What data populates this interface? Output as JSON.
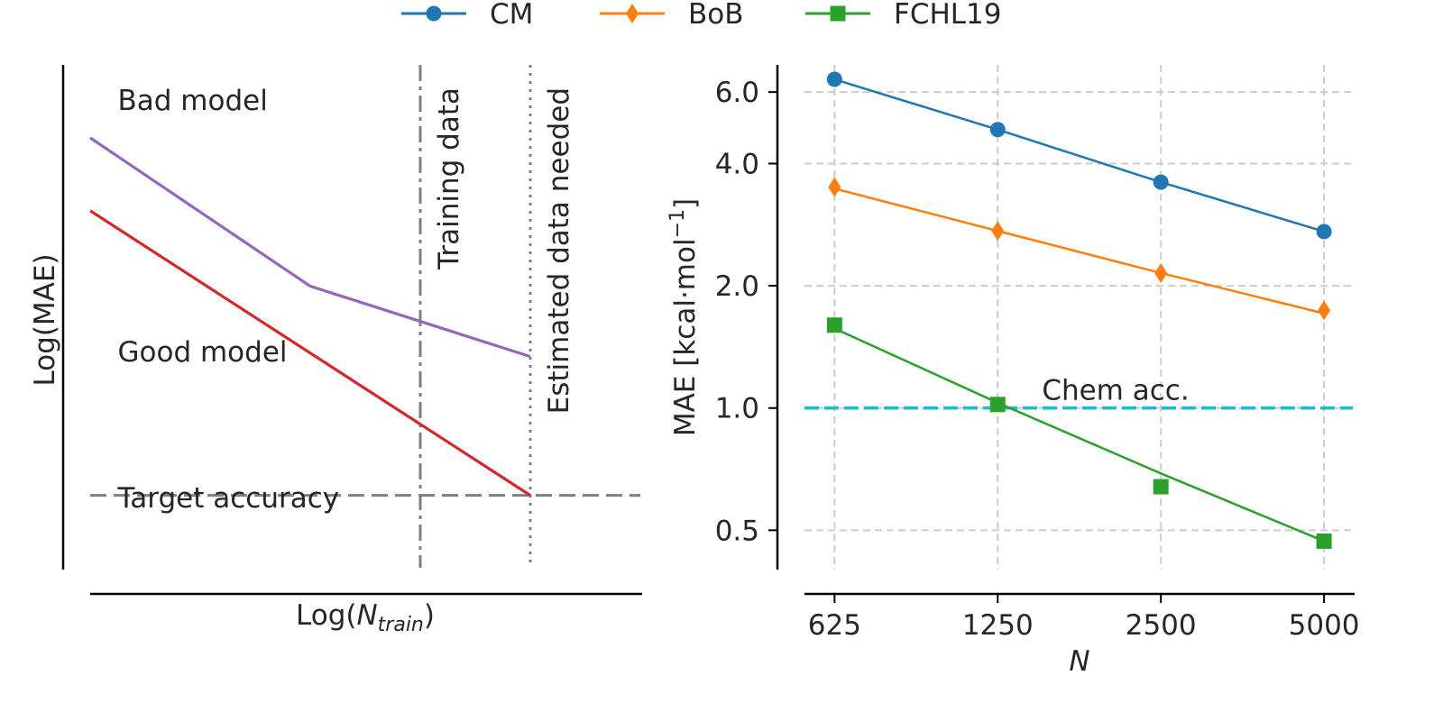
{
  "legend": {
    "placement": "top-center",
    "items": [
      {
        "label": "CM",
        "color": "#1f77b4",
        "marker": "circle"
      },
      {
        "label": "BoB",
        "color": "#ff7f0e",
        "marker": "thin-diamond"
      },
      {
        "label": "FCHL19",
        "color": "#2ca02c",
        "marker": "square"
      }
    ]
  },
  "chart_data": [
    {
      "type": "line",
      "kind": "schematic",
      "xlabel_prefix": "Log(",
      "xlabel_var": "N",
      "xlabel_sub": "train",
      "xlabel_suffix": ")",
      "ylabel": "Log(MAE)",
      "axis_ticks": "none",
      "grid": false,
      "xlim": [
        0,
        10
      ],
      "ylim": [
        0,
        10
      ],
      "lines": [
        {
          "name": "Bad model",
          "color": "#9467bd",
          "x": [
            0,
            4,
            6,
            8
          ],
          "y": [
            8.55,
            5.6,
            4.9,
            4.2
          ]
        },
        {
          "name": "Good model",
          "color": "#d62728",
          "x": [
            0,
            8
          ],
          "y": [
            7.1,
            1.44
          ]
        }
      ],
      "reference_lines": [
        {
          "orientation": "horizontal",
          "value": 1.44,
          "style": "dashed",
          "color": "#808080",
          "label": "Target accuracy"
        },
        {
          "orientation": "vertical",
          "value": 6,
          "style": "dashdot",
          "color": "#808080",
          "label": "Training data"
        },
        {
          "orientation": "vertical",
          "value": 8,
          "style": "dotted",
          "color": "#808080",
          "label": "Estimated data needed"
        }
      ],
      "annotations": [
        {
          "text": "Bad model",
          "x": 0.5,
          "y": 9.1
        },
        {
          "text": "Good model",
          "x": 0.5,
          "y": 4.1
        },
        {
          "text": "Target accuracy",
          "x": 0.5,
          "y": 1.2
        }
      ]
    },
    {
      "type": "line",
      "xscale": "log",
      "yscale": "log",
      "xlabel": "N",
      "ylabel_main": "MAE [kcal·mol",
      "ylabel_sup": "−1",
      "ylabel_close": "]",
      "x": [
        625,
        1250,
        2500,
        5000
      ],
      "x_tick_labels": [
        "625",
        "1250",
        "2500",
        "5000"
      ],
      "y_ticks": [
        0.5,
        1.0,
        2.0,
        4.0,
        6.0
      ],
      "y_tick_labels": [
        "0.5",
        "1.0",
        "2.0",
        "4.0",
        "6.0"
      ],
      "xlim": [
        550,
        5650
      ],
      "ylim": [
        0.4,
        7.0
      ],
      "grid": true,
      "series": [
        {
          "name": "CM",
          "color": "#1f77b4",
          "marker": "circle",
          "values": [
            6.45,
            4.85,
            3.6,
            2.72
          ]
        },
        {
          "name": "BoB",
          "color": "#ff7f0e",
          "marker": "thin-diamond",
          "values": [
            3.5,
            2.73,
            2.15,
            1.74
          ],
          "line": [
            3.47,
            2.73,
            2.15,
            1.71
          ]
        },
        {
          "name": "FCHL19",
          "color": "#2ca02c",
          "marker": "square",
          "values": [
            1.6,
            1.02,
            0.64,
            0.47
          ],
          "line": [
            1.57,
            1.03,
            0.69,
            0.47
          ]
        }
      ],
      "reference_line": {
        "value": 1.0,
        "color": "#17becf",
        "style": "dashed",
        "label": "Chem acc."
      }
    }
  ]
}
